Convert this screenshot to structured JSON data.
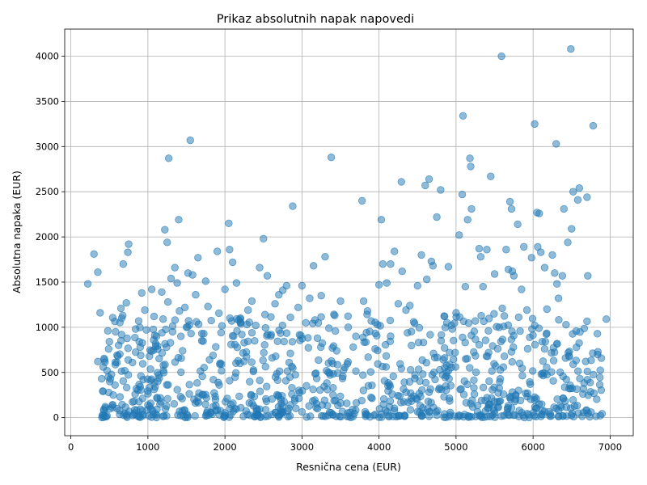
{
  "chart_data": {
    "type": "scatter",
    "title": "Prikaz absolutnih napak napovedi",
    "xlabel": "Resnična cena (EUR)",
    "ylabel": "Absolutna napaka (EUR)",
    "xlim": [
      -80,
      7300
    ],
    "ylim": [
      -200,
      4300
    ],
    "xticks": [
      0,
      1000,
      2000,
      3000,
      4000,
      5000,
      6000,
      7000
    ],
    "yticks": [
      0,
      500,
      1000,
      1500,
      2000,
      2500,
      3000,
      3500,
      4000
    ],
    "grid": true,
    "series": [
      {
        "color": "#1f77b4",
        "alpha": 0.5,
        "points": [
          [
            220,
            1480
          ],
          [
            300,
            1810
          ],
          [
            350,
            1610
          ],
          [
            380,
            1160
          ],
          [
            350,
            620
          ],
          [
            400,
            430
          ],
          [
            420,
            560
          ],
          [
            480,
            960
          ],
          [
            490,
            760
          ],
          [
            470,
            520
          ],
          [
            500,
            840
          ],
          [
            550,
            250
          ],
          [
            580,
            950
          ],
          [
            600,
            100
          ],
          [
            620,
            800
          ],
          [
            650,
            1210
          ],
          [
            660,
            1100
          ],
          [
            680,
            1700
          ],
          [
            700,
            520
          ],
          [
            720,
            1270
          ],
          [
            740,
            1830
          ],
          [
            750,
            1920
          ],
          [
            800,
            610
          ],
          [
            820,
            180
          ],
          [
            850,
            320
          ],
          [
            880,
            1070
          ],
          [
            900,
            780
          ],
          [
            920,
            1380
          ],
          [
            940,
            420
          ],
          [
            960,
            1190
          ],
          [
            980,
            970
          ],
          [
            1000,
            140
          ],
          [
            1020,
            680
          ],
          [
            1050,
            1420
          ],
          [
            1080,
            1120
          ],
          [
            1100,
            820
          ],
          [
            1120,
            220
          ],
          [
            1140,
            470
          ],
          [
            1180,
            1390
          ],
          [
            1200,
            580
          ],
          [
            1220,
            2080
          ],
          [
            1250,
            1940
          ],
          [
            1260,
            1280
          ],
          [
            1270,
            2870
          ],
          [
            1300,
            1540
          ],
          [
            1320,
            950
          ],
          [
            1350,
            1660
          ],
          [
            1380,
            1490
          ],
          [
            1400,
            2190
          ],
          [
            1410,
            1180
          ],
          [
            1450,
            740
          ],
          [
            1480,
            1220
          ],
          [
            1500,
            1000
          ],
          [
            1520,
            1600
          ],
          [
            1550,
            3070
          ],
          [
            1560,
            930
          ],
          [
            1580,
            1580
          ],
          [
            1620,
            1360
          ],
          [
            1650,
            1770
          ],
          [
            1700,
            850
          ],
          [
            1750,
            1510
          ],
          [
            1780,
            1230
          ],
          [
            1800,
            640
          ],
          [
            1850,
            420
          ],
          [
            1900,
            1840
          ],
          [
            1950,
            940
          ],
          [
            2000,
            1420
          ],
          [
            2050,
            2150
          ],
          [
            2060,
            1860
          ],
          [
            2100,
            1720
          ],
          [
            2150,
            1490
          ],
          [
            2200,
            1100
          ],
          [
            2250,
            830
          ],
          [
            2300,
            1190
          ],
          [
            2350,
            1290
          ],
          [
            2400,
            1020
          ],
          [
            2450,
            1660
          ],
          [
            2500,
            1980
          ],
          [
            2520,
            1140
          ],
          [
            2550,
            1570
          ],
          [
            2600,
            920
          ],
          [
            2650,
            1260
          ],
          [
            2700,
            1360
          ],
          [
            2750,
            1410
          ],
          [
            2800,
            1460
          ],
          [
            2850,
            1110
          ],
          [
            2880,
            2340
          ],
          [
            2950,
            1220
          ],
          [
            3000,
            1460
          ],
          [
            3050,
            1050
          ],
          [
            3100,
            1320
          ],
          [
            3150,
            1680
          ],
          [
            3200,
            880
          ],
          [
            3250,
            1350
          ],
          [
            3300,
            1780
          ],
          [
            3350,
            990
          ],
          [
            3380,
            2880
          ],
          [
            3450,
            740
          ],
          [
            3500,
            1290
          ],
          [
            3600,
            1000
          ],
          [
            3700,
            900
          ],
          [
            3780,
            2400
          ],
          [
            3800,
            1290
          ],
          [
            3850,
            1180
          ],
          [
            3900,
            1070
          ],
          [
            3950,
            760
          ],
          [
            4000,
            1470
          ],
          [
            4030,
            2190
          ],
          [
            4050,
            1700
          ],
          [
            4100,
            1490
          ],
          [
            4150,
            1700
          ],
          [
            4200,
            1840
          ],
          [
            4250,
            1260
          ],
          [
            4290,
            2610
          ],
          [
            4300,
            1620
          ],
          [
            4350,
            1190
          ],
          [
            4400,
            1240
          ],
          [
            4450,
            1060
          ],
          [
            4500,
            1460
          ],
          [
            4550,
            1800
          ],
          [
            4600,
            2570
          ],
          [
            4620,
            1530
          ],
          [
            4650,
            2640
          ],
          [
            4680,
            1730
          ],
          [
            4700,
            1680
          ],
          [
            4750,
            2220
          ],
          [
            4800,
            2520
          ],
          [
            4850,
            1120
          ],
          [
            4900,
            1670
          ],
          [
            4950,
            980
          ],
          [
            5000,
            1160
          ],
          [
            5040,
            2020
          ],
          [
            5080,
            2470
          ],
          [
            5090,
            3340
          ],
          [
            5120,
            1450
          ],
          [
            5150,
            2190
          ],
          [
            5180,
            2870
          ],
          [
            5190,
            2780
          ],
          [
            5200,
            2310
          ],
          [
            5250,
            1070
          ],
          [
            5300,
            1870
          ],
          [
            5320,
            1780
          ],
          [
            5350,
            1450
          ],
          [
            5400,
            1860
          ],
          [
            5420,
            960
          ],
          [
            5450,
            2670
          ],
          [
            5500,
            1590
          ],
          [
            5560,
            1000
          ],
          [
            5590,
            4000
          ],
          [
            5600,
            1210
          ],
          [
            5650,
            1860
          ],
          [
            5680,
            1640
          ],
          [
            5700,
            2390
          ],
          [
            5720,
            2310
          ],
          [
            5730,
            1620
          ],
          [
            5750,
            1570
          ],
          [
            5800,
            2140
          ],
          [
            5850,
            1420
          ],
          [
            5880,
            1890
          ],
          [
            5920,
            1190
          ],
          [
            5980,
            1770
          ],
          [
            6020,
            3250
          ],
          [
            6050,
            2270
          ],
          [
            6060,
            1890
          ],
          [
            6080,
            2260
          ],
          [
            6100,
            1830
          ],
          [
            6150,
            1660
          ],
          [
            6180,
            1200
          ],
          [
            6250,
            1800
          ],
          [
            6280,
            1600
          ],
          [
            6300,
            3030
          ],
          [
            6310,
            1480
          ],
          [
            6330,
            1320
          ],
          [
            6380,
            1570
          ],
          [
            6400,
            2310
          ],
          [
            6450,
            1940
          ],
          [
            6490,
            4080
          ],
          [
            6500,
            2090
          ],
          [
            6520,
            2500
          ],
          [
            6580,
            2410
          ],
          [
            6600,
            2540
          ],
          [
            6700,
            2440
          ],
          [
            6710,
            1570
          ],
          [
            6780,
            3230
          ],
          [
            6950,
            1090
          ],
          [
            6300,
            100
          ],
          [
            6420,
            660
          ],
          [
            6520,
            590
          ],
          [
            6120,
            490
          ],
          [
            6150,
            760
          ]
        ]
      }
    ]
  }
}
